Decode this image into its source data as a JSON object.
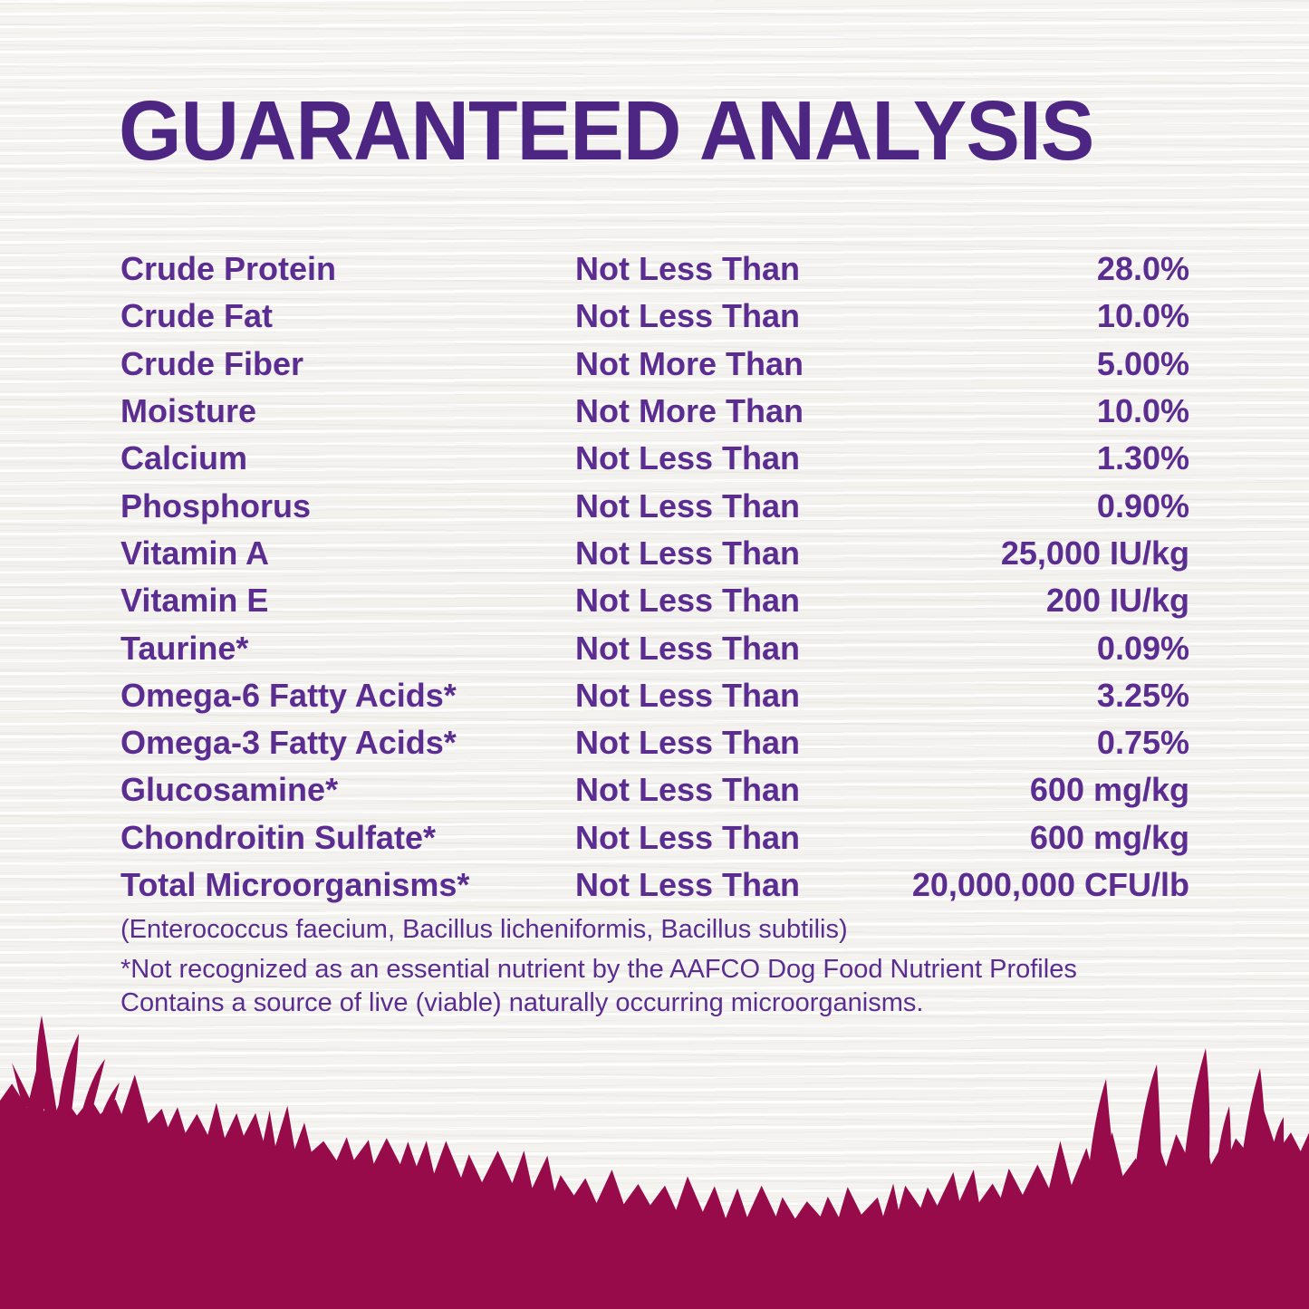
{
  "page": {
    "title": "GUARANTEED ANALYSIS"
  },
  "colors": {
    "title": "#4D2582",
    "text": "#5B2D91",
    "grass": "#970B4A",
    "background": "#F6F5F2"
  },
  "analysis": {
    "rows": [
      {
        "nutrient": "Crude Protein",
        "qualifier": "Not Less Than",
        "value": "28.0%"
      },
      {
        "nutrient": "Crude Fat",
        "qualifier": "Not Less Than",
        "value": "10.0%"
      },
      {
        "nutrient": "Crude Fiber",
        "qualifier": "Not More Than",
        "value": "5.00%"
      },
      {
        "nutrient": "Moisture",
        "qualifier": "Not More Than",
        "value": "10.0%"
      },
      {
        "nutrient": "Calcium",
        "qualifier": "Not Less Than",
        "value": "1.30%"
      },
      {
        "nutrient": "Phosphorus",
        "qualifier": "Not Less Than",
        "value": "0.90%"
      },
      {
        "nutrient": "Vitamin A",
        "qualifier": "Not Less Than",
        "value": "25,000 IU/kg"
      },
      {
        "nutrient": "Vitamin E",
        "qualifier": "Not Less Than",
        "value": "200 IU/kg"
      },
      {
        "nutrient": "Taurine*",
        "qualifier": "Not Less Than",
        "value": "0.09%"
      },
      {
        "nutrient": "Omega-6 Fatty Acids*",
        "qualifier": "Not Less Than",
        "value": "3.25%"
      },
      {
        "nutrient": "Omega-3 Fatty Acids*",
        "qualifier": "Not Less Than",
        "value": "0.75%"
      },
      {
        "nutrient": "Glucosamine*",
        "qualifier": "Not Less Than",
        "value": "600 mg/kg"
      },
      {
        "nutrient": "Chondroitin Sulfate*",
        "qualifier": "Not Less Than",
        "value": "600 mg/kg"
      },
      {
        "nutrient": "Total Microorganisms*",
        "qualifier": "Not Less Than",
        "value": "20,000,000 CFU/lb"
      }
    ],
    "microorganisms_note": "(Enterococcus faecium, Bacillus licheniformis, Bacillus subtilis)",
    "footnote_line1": "*Not recognized as an essential nutrient by the AAFCO Dog Food Nutrient Profiles",
    "footnote_line2": "Contains a source of live (viable) naturally occurring microorganisms."
  }
}
